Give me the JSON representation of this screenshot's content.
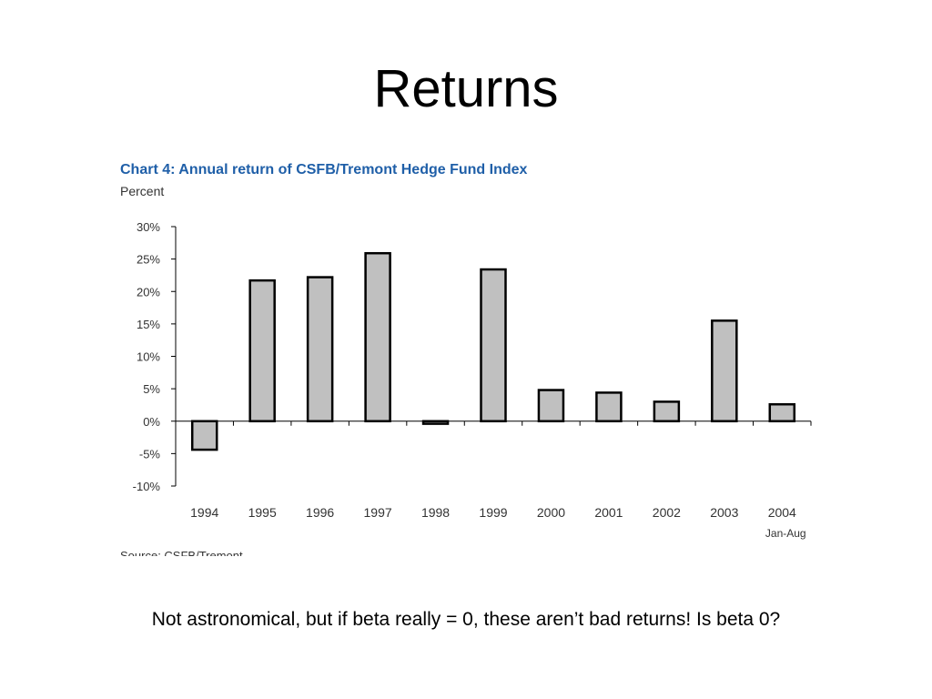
{
  "slide": {
    "title": "Returns",
    "caption": "Not astronomical, but if beta really = 0, these aren’t bad returns! Is beta 0?"
  },
  "chart_data": {
    "type": "bar",
    "title": "Chart 4:  Annual return of CSFB/Tremont Hedge Fund Index",
    "ylabel": "Percent",
    "xlabel": "",
    "source": "Source: CSFB/Tremont",
    "categories": [
      "1994",
      "1995",
      "1996",
      "1997",
      "1998",
      "1999",
      "2000",
      "2001",
      "2002",
      "2003",
      "2004"
    ],
    "category_sublabels": [
      "",
      "",
      "",
      "",
      "",
      "",
      "",
      "",
      "",
      "",
      "Jan-Aug"
    ],
    "values": [
      -4.4,
      21.7,
      22.2,
      25.9,
      -0.4,
      23.4,
      4.8,
      4.4,
      3.0,
      15.5,
      2.6
    ],
    "ylim": [
      -10,
      30
    ],
    "yticks": [
      30,
      25,
      20,
      15,
      10,
      5,
      0,
      -5,
      -10
    ],
    "ytick_labels": [
      "30%",
      "25%",
      "20%",
      "15%",
      "10%",
      "5%",
      "0%",
      "-5%",
      "-10%"
    ],
    "grid": false,
    "legend": "none",
    "colors": {
      "title": "#1f5fa8",
      "bar_fill": "#c0c0c0",
      "bar_stroke": "#000000",
      "axis": "#000000",
      "text": "#333333"
    }
  }
}
